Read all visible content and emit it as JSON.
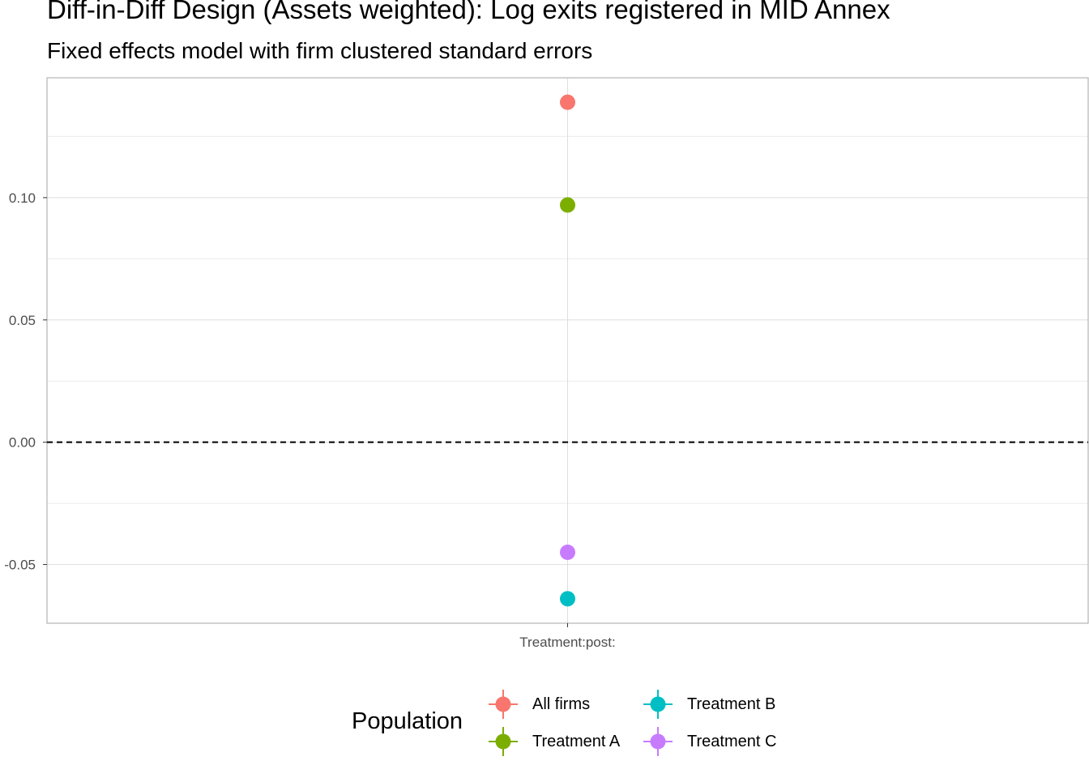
{
  "title": "Diff-in-Diff Design (Assets weighted): Log exits registered in MID Annex",
  "subtitle": "Fixed effects model with firm clustered standard errors",
  "chart_data": {
    "type": "scatter",
    "title": "Diff-in-Diff Design (Assets weighted): Log exits registered in MID Annex",
    "subtitle": "Fixed effects model with firm clustered standard errors",
    "xlabel": "",
    "ylabel": "",
    "categories": [
      "Treatment:post:"
    ],
    "ylim": [
      -0.074,
      0.149
    ],
    "y_ticks": [
      -0.05,
      0.0,
      0.05,
      0.1
    ],
    "y_tick_labels": [
      "-0.05",
      "0.00",
      "0.05",
      "0.10"
    ],
    "reference_line": {
      "y": 0,
      "style": "dashed"
    },
    "grid": true,
    "legend": {
      "title": "Population",
      "position": "bottom"
    },
    "series": [
      {
        "name": "All firms",
        "color": "#F8766D",
        "values": [
          0.139
        ]
      },
      {
        "name": "Treatment A",
        "color": "#7CAE00",
        "values": [
          0.097
        ]
      },
      {
        "name": "Treatment B",
        "color": "#00BFC4",
        "values": [
          -0.064
        ]
      },
      {
        "name": "Treatment C",
        "color": "#C77CFF",
        "values": [
          -0.045
        ]
      }
    ]
  }
}
